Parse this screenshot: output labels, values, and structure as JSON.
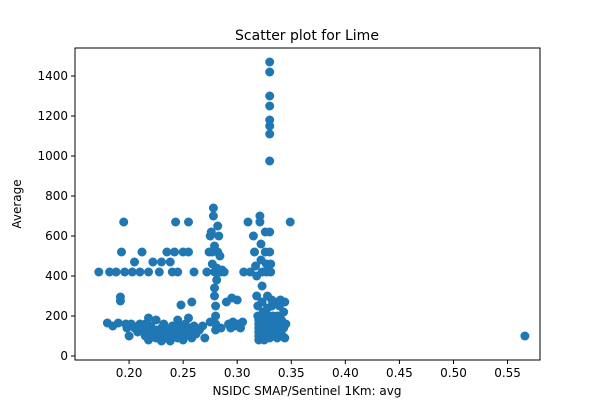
{
  "chart_data": {
    "type": "scatter",
    "title": "Scatter plot for Lime",
    "xlabel": "NSIDC SMAP/Sentinel 1Km: avg",
    "ylabel": "Average",
    "xlim": [
      0.15,
      0.58
    ],
    "ylim": [
      -20,
      1540
    ],
    "xticks": [
      0.2,
      0.25,
      0.3,
      0.35,
      0.4,
      0.45,
      0.5,
      0.55
    ],
    "xtick_labels": [
      "0.20",
      "0.25",
      "0.30",
      "0.35",
      "0.40",
      "0.45",
      "0.50",
      "0.55"
    ],
    "yticks": [
      0,
      200,
      400,
      600,
      800,
      1000,
      1200,
      1400
    ],
    "ytick_labels": [
      "0",
      "200",
      "400",
      "600",
      "800",
      "1000",
      "1200",
      "1400"
    ],
    "grid": false,
    "legend": "none",
    "marker_color": "#1f77b4",
    "points": [
      [
        0.172,
        420
      ],
      [
        0.18,
        165
      ],
      [
        0.182,
        420
      ],
      [
        0.185,
        150
      ],
      [
        0.188,
        420
      ],
      [
        0.19,
        165
      ],
      [
        0.192,
        275
      ],
      [
        0.192,
        295
      ],
      [
        0.193,
        520
      ],
      [
        0.195,
        670
      ],
      [
        0.196,
        420
      ],
      [
        0.197,
        160
      ],
      [
        0.198,
        140
      ],
      [
        0.2,
        100
      ],
      [
        0.2,
        150
      ],
      [
        0.202,
        160
      ],
      [
        0.203,
        420
      ],
      [
        0.205,
        140
      ],
      [
        0.205,
        470
      ],
      [
        0.208,
        120
      ],
      [
        0.21,
        420
      ],
      [
        0.21,
        160
      ],
      [
        0.212,
        140
      ],
      [
        0.212,
        520
      ],
      [
        0.215,
        100
      ],
      [
        0.215,
        130
      ],
      [
        0.215,
        160
      ],
      [
        0.218,
        190
      ],
      [
        0.218,
        420
      ],
      [
        0.218,
        80
      ],
      [
        0.22,
        150
      ],
      [
        0.22,
        120
      ],
      [
        0.222,
        470
      ],
      [
        0.222,
        100
      ],
      [
        0.225,
        90
      ],
      [
        0.225,
        130
      ],
      [
        0.225,
        180
      ],
      [
        0.228,
        420
      ],
      [
        0.228,
        110
      ],
      [
        0.23,
        75
      ],
      [
        0.23,
        140
      ],
      [
        0.23,
        470
      ],
      [
        0.232,
        100
      ],
      [
        0.232,
        160
      ],
      [
        0.235,
        520
      ],
      [
        0.235,
        90
      ],
      [
        0.235,
        130
      ],
      [
        0.238,
        470
      ],
      [
        0.238,
        110
      ],
      [
        0.238,
        75
      ],
      [
        0.24,
        150
      ],
      [
        0.24,
        100
      ],
      [
        0.24,
        420
      ],
      [
        0.242,
        520
      ],
      [
        0.242,
        130
      ],
      [
        0.243,
        670
      ],
      [
        0.245,
        420
      ],
      [
        0.245,
        90
      ],
      [
        0.245,
        180
      ],
      [
        0.247,
        150
      ],
      [
        0.248,
        255
      ],
      [
        0.248,
        110
      ],
      [
        0.25,
        80
      ],
      [
        0.25,
        130
      ],
      [
        0.25,
        520
      ],
      [
        0.252,
        160
      ],
      [
        0.252,
        100
      ],
      [
        0.255,
        670
      ],
      [
        0.255,
        520
      ],
      [
        0.255,
        140
      ],
      [
        0.255,
        190
      ],
      [
        0.257,
        120
      ],
      [
        0.258,
        270
      ],
      [
        0.258,
        90
      ],
      [
        0.26,
        150
      ],
      [
        0.26,
        420
      ],
      [
        0.262,
        110
      ],
      [
        0.265,
        130
      ],
      [
        0.268,
        150
      ],
      [
        0.27,
        90
      ],
      [
        0.272,
        420
      ],
      [
        0.274,
        520
      ],
      [
        0.275,
        170
      ],
      [
        0.275,
        600
      ],
      [
        0.276,
        620
      ],
      [
        0.277,
        460
      ],
      [
        0.277,
        520
      ],
      [
        0.278,
        700
      ],
      [
        0.278,
        740
      ],
      [
        0.279,
        550
      ],
      [
        0.279,
        420
      ],
      [
        0.279,
        340
      ],
      [
        0.279,
        300
      ],
      [
        0.28,
        250
      ],
      [
        0.28,
        200
      ],
      [
        0.28,
        160
      ],
      [
        0.28,
        130
      ],
      [
        0.281,
        380
      ],
      [
        0.281,
        440
      ],
      [
        0.282,
        650
      ],
      [
        0.282,
        520
      ],
      [
        0.283,
        420
      ],
      [
        0.283,
        600
      ],
      [
        0.284,
        500
      ],
      [
        0.285,
        420
      ],
      [
        0.285,
        140
      ],
      [
        0.286,
        430
      ],
      [
        0.288,
        420
      ],
      [
        0.29,
        270
      ],
      [
        0.292,
        160
      ],
      [
        0.294,
        140
      ],
      [
        0.295,
        290
      ],
      [
        0.296,
        170
      ],
      [
        0.298,
        150
      ],
      [
        0.3,
        160
      ],
      [
        0.3,
        280
      ],
      [
        0.303,
        140
      ],
      [
        0.305,
        170
      ],
      [
        0.306,
        420
      ],
      [
        0.31,
        670
      ],
      [
        0.312,
        420
      ],
      [
        0.315,
        600
      ],
      [
        0.316,
        520
      ],
      [
        0.317,
        450
      ],
      [
        0.318,
        400
      ],
      [
        0.318,
        300
      ],
      [
        0.319,
        250
      ],
      [
        0.319,
        200
      ],
      [
        0.32,
        180
      ],
      [
        0.32,
        160
      ],
      [
        0.32,
        140
      ],
      [
        0.32,
        120
      ],
      [
        0.32,
        100
      ],
      [
        0.32,
        80
      ],
      [
        0.321,
        700
      ],
      [
        0.321,
        670
      ],
      [
        0.322,
        560
      ],
      [
        0.322,
        480
      ],
      [
        0.323,
        420
      ],
      [
        0.323,
        350
      ],
      [
        0.323,
        270
      ],
      [
        0.324,
        220
      ],
      [
        0.324,
        190
      ],
      [
        0.324,
        150
      ],
      [
        0.325,
        125
      ],
      [
        0.325,
        100
      ],
      [
        0.325,
        80
      ],
      [
        0.326,
        620
      ],
      [
        0.326,
        520
      ],
      [
        0.327,
        460
      ],
      [
        0.327,
        420
      ],
      [
        0.328,
        300
      ],
      [
        0.328,
        240
      ],
      [
        0.329,
        200
      ],
      [
        0.329,
        160
      ],
      [
        0.33,
        130
      ],
      [
        0.33,
        110
      ],
      [
        0.33,
        90
      ],
      [
        0.33,
        1470
      ],
      [
        0.33,
        1420
      ],
      [
        0.33,
        1300
      ],
      [
        0.33,
        1250
      ],
      [
        0.33,
        1180
      ],
      [
        0.33,
        1150
      ],
      [
        0.33,
        1110
      ],
      [
        0.33,
        975
      ],
      [
        0.33,
        620
      ],
      [
        0.33,
        520
      ],
      [
        0.331,
        460
      ],
      [
        0.331,
        420
      ],
      [
        0.332,
        280
      ],
      [
        0.332,
        250
      ],
      [
        0.333,
        200
      ],
      [
        0.333,
        170
      ],
      [
        0.334,
        140
      ],
      [
        0.334,
        100
      ],
      [
        0.335,
        270
      ],
      [
        0.335,
        180
      ],
      [
        0.336,
        150
      ],
      [
        0.336,
        120
      ],
      [
        0.337,
        90
      ],
      [
        0.337,
        200
      ],
      [
        0.338,
        160
      ],
      [
        0.339,
        250
      ],
      [
        0.34,
        130
      ],
      [
        0.34,
        280
      ],
      [
        0.341,
        180
      ],
      [
        0.342,
        100
      ],
      [
        0.343,
        220
      ],
      [
        0.343,
        140
      ],
      [
        0.344,
        270
      ],
      [
        0.344,
        90
      ],
      [
        0.345,
        160
      ],
      [
        0.349,
        670
      ],
      [
        0.566,
        100
      ]
    ]
  }
}
